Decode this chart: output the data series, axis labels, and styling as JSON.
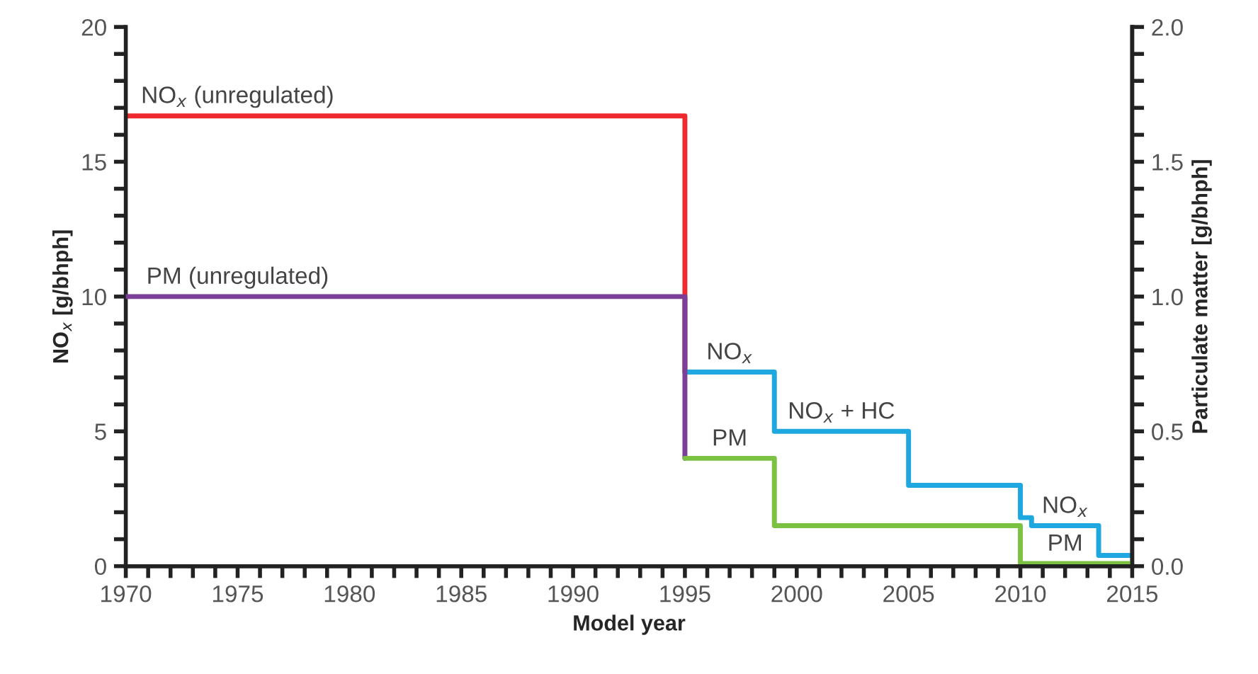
{
  "chart_data": {
    "type": "step",
    "xlabel": "Model year",
    "ylabel": "NO$_{x}$ [g/bhph]",
    "y2label": "Particulate matter [g/bhph]",
    "xlim": [
      1970,
      2015
    ],
    "ylim": [
      0,
      20
    ],
    "y2lim": [
      0,
      2
    ],
    "xticks": [
      1970,
      {
        "value": 1971,
        "label": null
      },
      {
        "value": 1972,
        "label": null
      },
      {
        "value": 1973,
        "label": null
      },
      {
        "value": 1974,
        "label": null
      },
      1975,
      {
        "value": 1976,
        "label": null
      },
      {
        "value": 1977,
        "label": null
      },
      {
        "value": 1978,
        "label": null
      },
      {
        "value": 1979,
        "label": null
      },
      1980,
      {
        "value": 1981,
        "label": null
      },
      {
        "value": 1982,
        "label": null
      },
      {
        "value": 1983,
        "label": null
      },
      {
        "value": 1984,
        "label": null
      },
      1985,
      {
        "value": 1986,
        "label": null
      },
      {
        "value": 1987,
        "label": null
      },
      {
        "value": 1988,
        "label": null
      },
      {
        "value": 1989,
        "label": null
      },
      1990,
      {
        "value": 1991,
        "label": null
      },
      {
        "value": 1992,
        "label": null
      },
      {
        "value": 1993,
        "label": null
      },
      {
        "value": 1994,
        "label": null
      },
      1995,
      {
        "value": 1996,
        "label": null
      },
      {
        "value": 1997,
        "label": null
      },
      {
        "value": 1998,
        "label": null
      },
      {
        "value": 1999,
        "label": null
      },
      2000,
      {
        "value": 2001,
        "label": null
      },
      {
        "value": 2002,
        "label": null
      },
      {
        "value": 2003,
        "label": null
      },
      {
        "value": 2004,
        "label": null
      },
      2005,
      {
        "value": 2006,
        "label": null
      },
      {
        "value": 2007,
        "label": null
      },
      {
        "value": 2008,
        "label": null
      },
      {
        "value": 2009,
        "label": null
      },
      2010,
      {
        "value": 2011,
        "label": null
      },
      {
        "value": 2012,
        "label": null
      },
      {
        "value": 2013,
        "label": null
      },
      {
        "value": 2014,
        "label": null
      },
      2015
    ],
    "yticks": [
      0,
      {
        "value": 1,
        "label": null
      },
      {
        "value": 2,
        "label": null
      },
      {
        "value": 3,
        "label": null
      },
      {
        "value": 4,
        "label": null
      },
      5,
      {
        "value": 6,
        "label": null
      },
      {
        "value": 7,
        "label": null
      },
      {
        "value": 8,
        "label": null
      },
      {
        "value": 9,
        "label": null
      },
      10,
      {
        "value": 11,
        "label": null
      },
      {
        "value": 12,
        "label": null
      },
      {
        "value": 13,
        "label": null
      },
      {
        "value": 14,
        "label": null
      },
      15,
      {
        "value": 16,
        "label": null
      },
      {
        "value": 17,
        "label": null
      },
      {
        "value": 18,
        "label": null
      },
      {
        "value": 19,
        "label": null
      },
      20
    ],
    "y2ticks": [
      {
        "value": 0,
        "label": "0.0"
      },
      {
        "value": 0.1,
        "label": null
      },
      {
        "value": 0.2,
        "label": null
      },
      {
        "value": 0.3,
        "label": null
      },
      {
        "value": 0.4,
        "label": null
      },
      {
        "value": 0.5,
        "label": "0.5"
      },
      {
        "value": 0.6,
        "label": null
      },
      {
        "value": 0.7,
        "label": null
      },
      {
        "value": 0.8,
        "label": null
      },
      {
        "value": 0.9,
        "label": null
      },
      {
        "value": 1.0,
        "label": "1.0"
      },
      {
        "value": 1.1,
        "label": null
      },
      {
        "value": 1.2,
        "label": null
      },
      {
        "value": 1.3,
        "label": null
      },
      {
        "value": 1.4,
        "label": null
      },
      {
        "value": 1.5,
        "label": "1.5"
      },
      {
        "value": 1.6,
        "label": null
      },
      {
        "value": 1.7,
        "label": null
      },
      {
        "value": 1.8,
        "label": null
      },
      {
        "value": 1.9,
        "label": null
      },
      {
        "value": 2.0,
        "label": "2.0"
      }
    ],
    "series": [
      {
        "color": "#ee2a2e",
        "x": [
          1970,
          1995
        ],
        "values": [
          16.7,
          7.2
        ]
      },
      {
        "color": "#1fa8e0",
        "x": [
          1995,
          1999,
          2005,
          2010,
          2010.5,
          2013.5,
          2015
        ],
        "values": [
          7.2,
          5.0,
          3.0,
          1.8,
          1.5,
          0.4,
          0.4
        ]
      },
      {
        "color": "#7b3f98",
        "axis": "y2",
        "x": [
          1970,
          1995
        ],
        "values": [
          1.0,
          0.4
        ]
      },
      {
        "color": "#7cc242",
        "axis": "y2",
        "x": [
          1995,
          1999,
          2010,
          2015
        ],
        "values": [
          0.4,
          0.15,
          0.01,
          0.01
        ]
      }
    ],
    "annotations": [
      {
        "text": "NO$_{x}$ (unregulated)",
        "x": 1975,
        "y": 16.7
      },
      {
        "text": "PM (unregulated)",
        "x": 1975,
        "y": 10.0
      },
      {
        "text": "NO$_{x}$",
        "x": 1997,
        "y": 7.2
      },
      {
        "text": "PM",
        "x": 1997,
        "y": 4.0
      },
      {
        "text": "NO$_{x}$ + HC",
        "x": 2002,
        "y": 5.0
      },
      {
        "text": "NO$_{x}$",
        "x": 2012,
        "y": 1.5
      },
      {
        "text": "PM",
        "x": 2012,
        "y": 0.1
      }
    ],
    "grid": false,
    "legend": false
  }
}
